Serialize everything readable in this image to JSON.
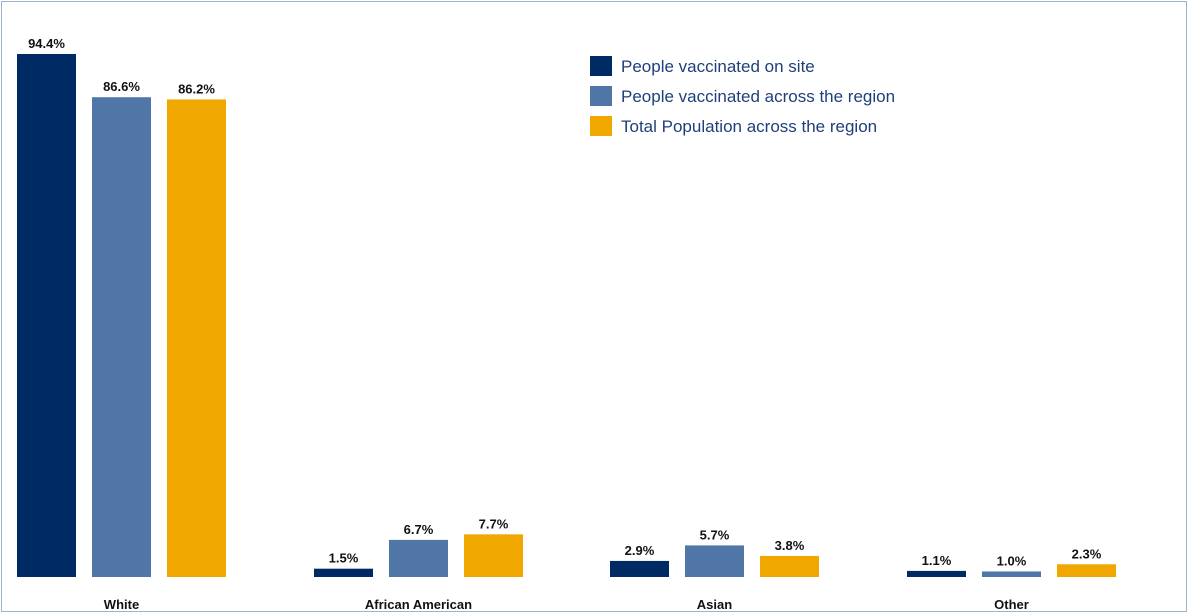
{
  "chart_data": {
    "type": "bar",
    "categories": [
      "White",
      "African American",
      "Asian",
      "Other"
    ],
    "series": [
      {
        "name": "People vaccinated on site",
        "color": "#002a64",
        "values": [
          94.4,
          1.5,
          2.9,
          1.1
        ],
        "labels": [
          "94.4%",
          "1.5%",
          "2.9%",
          "1.1%"
        ]
      },
      {
        "name": "People vaccinated across the region",
        "color": "#4f76a6",
        "values": [
          86.6,
          6.7,
          5.7,
          1.0
        ],
        "labels": [
          "86.6%",
          "6.7%",
          "5.7%",
          "1.0%"
        ]
      },
      {
        "name": "Total Population across the region",
        "color": "#f0a800",
        "values": [
          86.2,
          7.7,
          3.8,
          2.3
        ],
        "labels": [
          "86.2%",
          "7.7%",
          "3.8%",
          "2.3%"
        ]
      }
    ],
    "title": "",
    "xlabel": "",
    "ylabel": "",
    "ylim": [
      0,
      94.4
    ],
    "grid": false,
    "legend_position": "top-right"
  }
}
